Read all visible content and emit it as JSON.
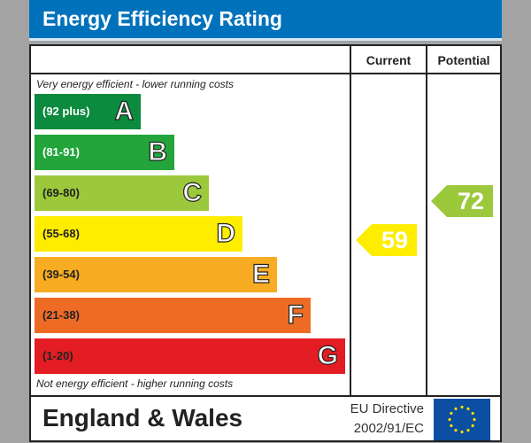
{
  "title": "Energy Efficiency Rating",
  "columns": {
    "current": "Current",
    "potential": "Potential"
  },
  "top_note": "Very energy efficient - lower running costs",
  "bottom_note": "Not energy efficient - higher running costs",
  "bands": [
    {
      "range": "(92 plus)",
      "letter": "A",
      "color": "#0c8a3e",
      "text_color": "#ffffff"
    },
    {
      "range": "(81-91)",
      "letter": "B",
      "color": "#23a53b",
      "text_color": "#ffffff"
    },
    {
      "range": "(69-80)",
      "letter": "C",
      "color": "#9cc93c",
      "text_color": "#222222"
    },
    {
      "range": "(55-68)",
      "letter": "D",
      "color": "#ffed00",
      "text_color": "#222222"
    },
    {
      "range": "(39-54)",
      "letter": "E",
      "color": "#f7ac21",
      "text_color": "#222222"
    },
    {
      "range": "(21-38)",
      "letter": "F",
      "color": "#ee6b26",
      "text_color": "#222222"
    },
    {
      "range": "(1-20)",
      "letter": "G",
      "color": "#e31d23",
      "text_color": "#222222"
    }
  ],
  "current": {
    "value": "59",
    "color": "#ffed00"
  },
  "potential": {
    "value": "72",
    "color": "#9cc93c"
  },
  "footer": {
    "region": "England & Wales",
    "directive_line1": "EU Directive",
    "directive_line2": "2002/91/EC",
    "flag": "eu-flag-icon"
  }
}
